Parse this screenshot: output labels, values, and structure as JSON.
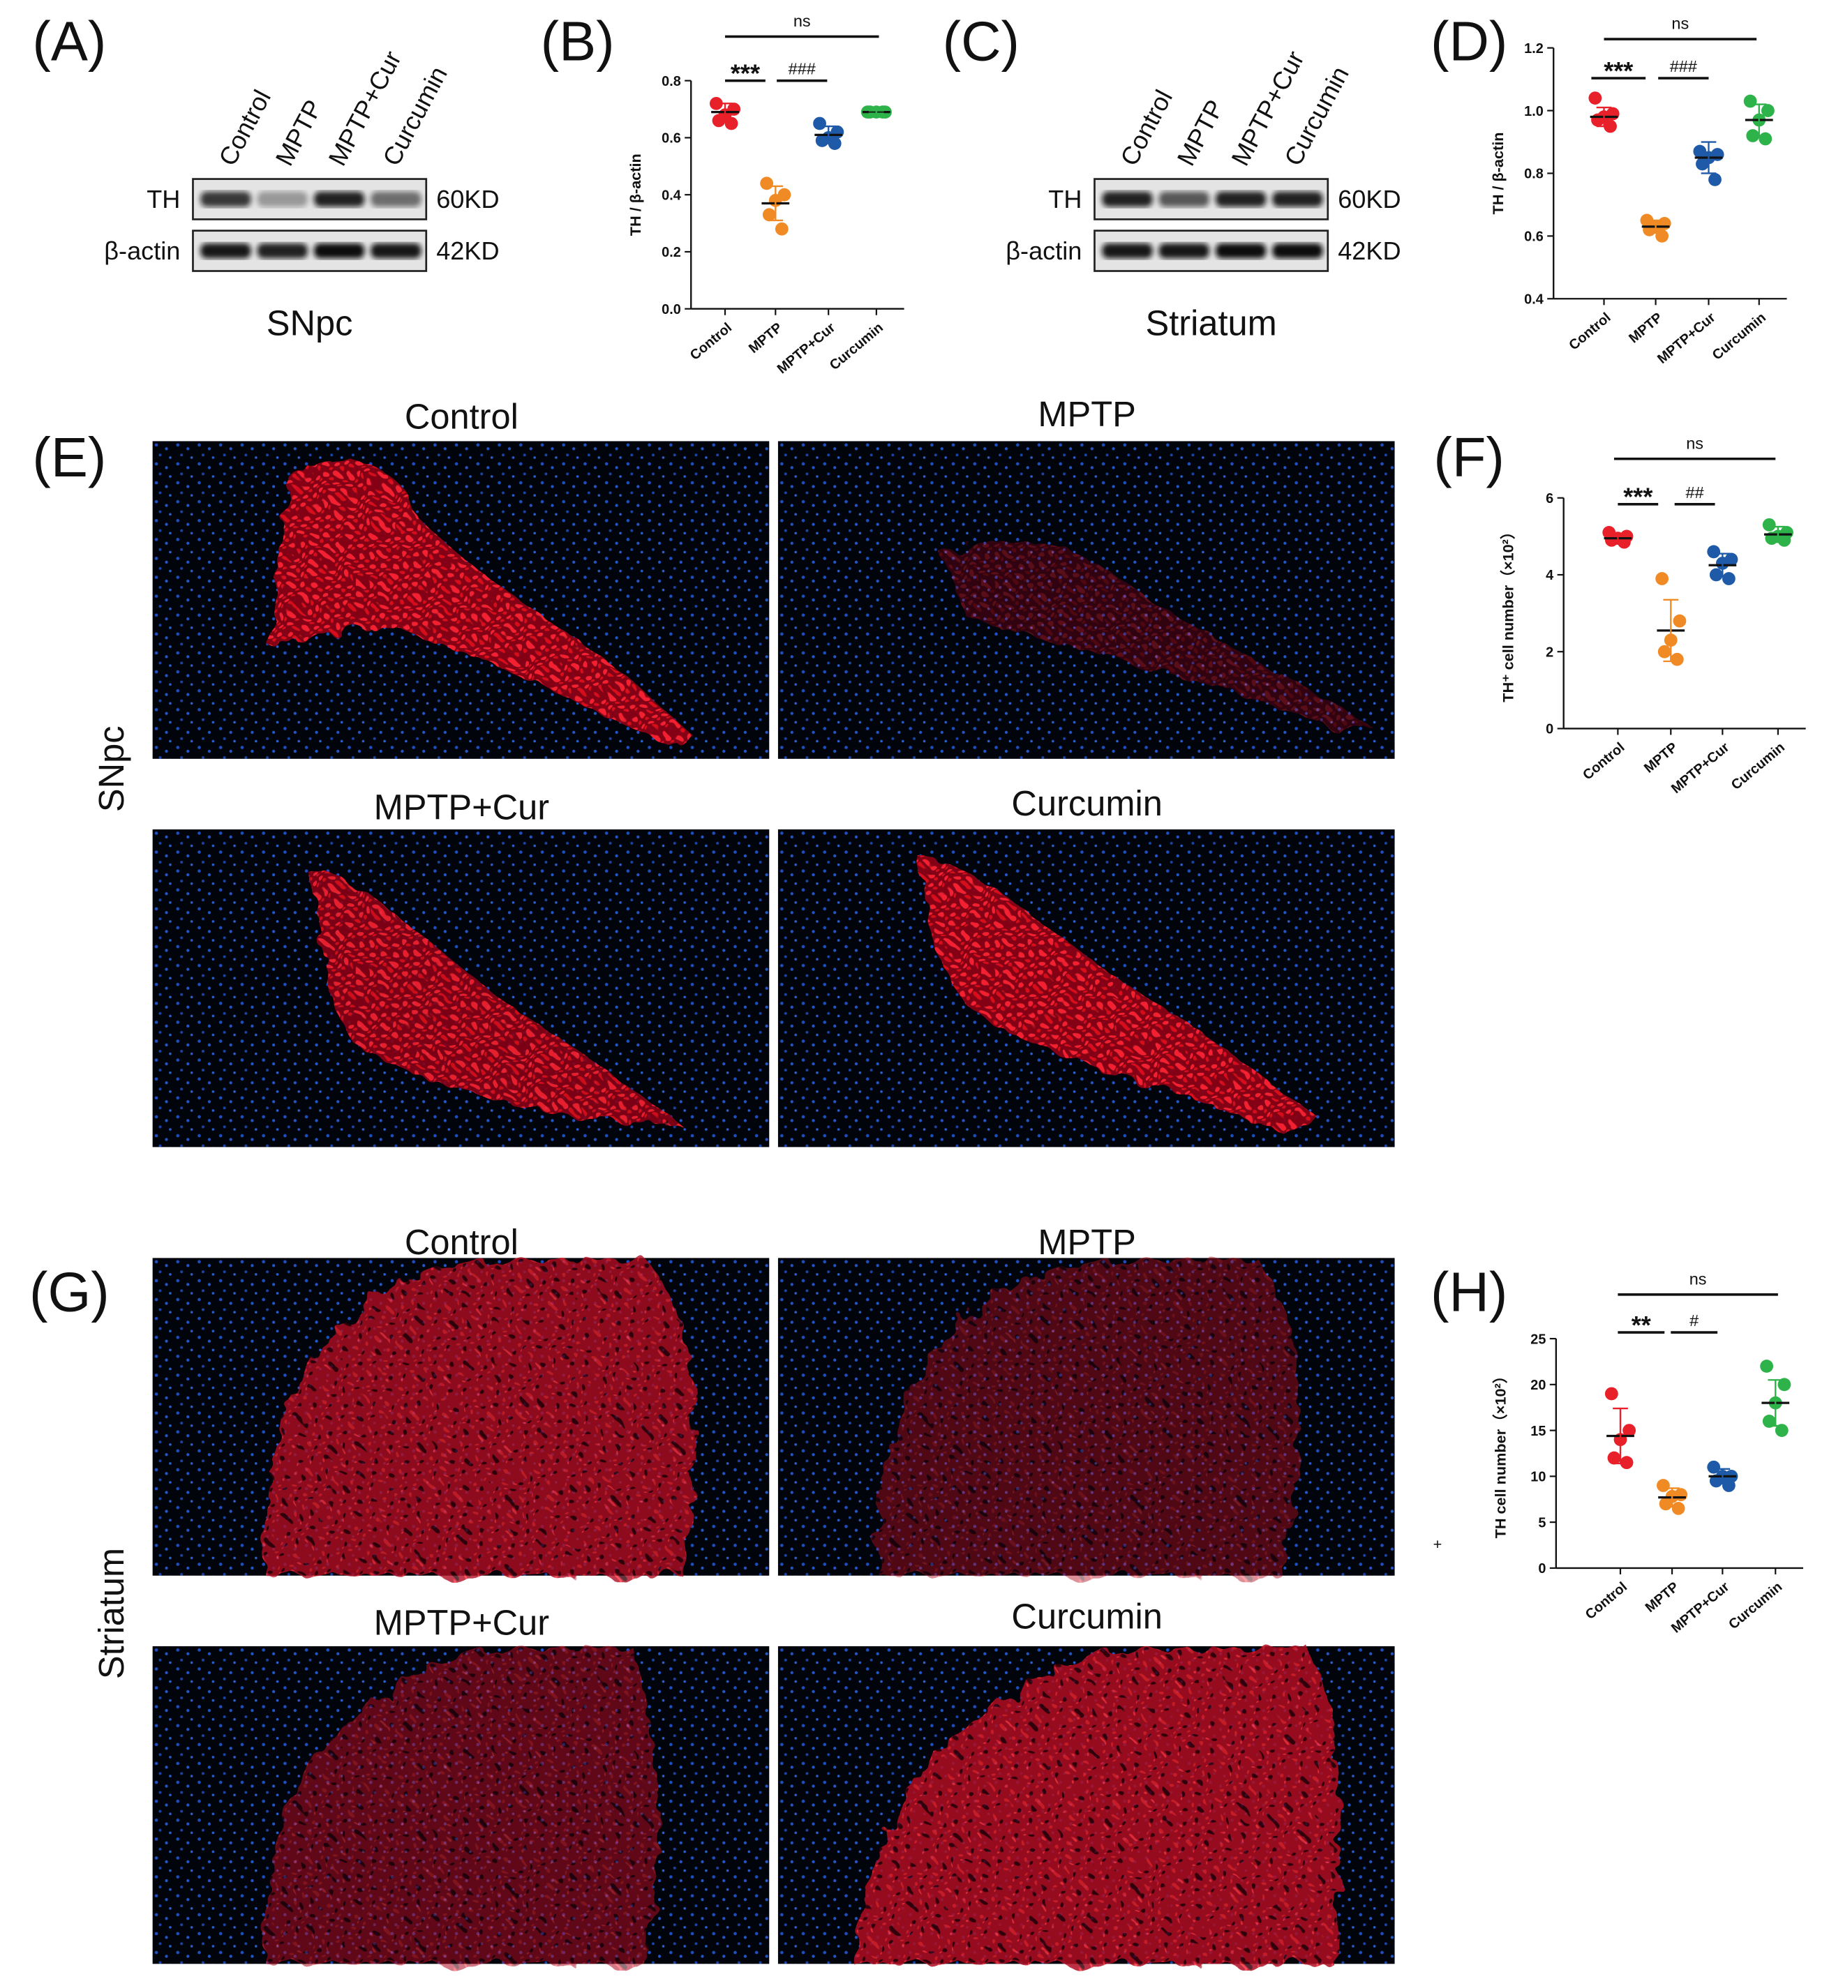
{
  "panel_labels": [
    "(A)",
    "(B)",
    "(C)",
    "(D)",
    "(E)",
    "(F)",
    "(G)",
    "(H)"
  ],
  "blots": [
    {
      "lanes": [
        "Control",
        "MPTP",
        "MPTP+Cur",
        "Curcumin"
      ],
      "rows": [
        {
          "name": "TH",
          "size": "60KD"
        },
        {
          "name": "β-actin",
          "size": "42KD"
        }
      ],
      "region": "SNpc"
    },
    {
      "lanes": [
        "Control",
        "MPTP",
        "MPTP+Cur",
        "Curcumin"
      ],
      "rows": [
        {
          "name": "TH",
          "size": "60KD"
        },
        {
          "name": "β-actin",
          "size": "42KD"
        }
      ],
      "region": "Striatum"
    }
  ],
  "images": [
    {
      "region": "SNpc",
      "titles": [
        "Control",
        "MPTP",
        "MPTP+Cur",
        "Curcumin"
      ]
    },
    {
      "region": "Striatum",
      "titles": [
        "Control",
        "MPTP",
        "MPTP+Cur",
        "Curcumin"
      ]
    }
  ],
  "stray_mark": "+",
  "chart_data": [
    {
      "type": "dot",
      "ylabel": "TH / β-actin",
      "categories": [
        "Control",
        "MPTP",
        "MPTP+Cur",
        "Curcumin"
      ],
      "colors": [
        "#e8202a",
        "#f08a24",
        "#1f5aa8",
        "#2eb34a"
      ],
      "points": [
        [
          0.72,
          0.7,
          0.68,
          0.66,
          0.65
        ],
        [
          0.44,
          0.4,
          0.38,
          0.33,
          0.28
        ],
        [
          0.65,
          0.62,
          0.6,
          0.59,
          0.58
        ],
        [
          0.69,
          0.69,
          0.69,
          0.69,
          0.69
        ]
      ],
      "means": [
        0.69,
        0.37,
        0.61,
        0.69
      ],
      "sds": [
        0.03,
        0.06,
        0.03,
        0.005
      ],
      "ylim": [
        0,
        0.8
      ],
      "yticks": [
        {
          "value": 0,
          "label": "0.0"
        },
        0.2,
        0.4,
        0.6,
        0.8
      ],
      "annotations": [
        "***",
        "###",
        "ns"
      ]
    },
    {
      "type": "dot",
      "ylabel": "TH / β-actin",
      "categories": [
        "Control",
        "MPTP",
        "MPTP+Cur",
        "Curcumin"
      ],
      "colors": [
        "#e8202a",
        "#f08a24",
        "#1f5aa8",
        "#2eb34a"
      ],
      "points": [
        [
          1.04,
          0.99,
          0.98,
          0.97,
          0.95
        ],
        [
          0.65,
          0.64,
          0.63,
          0.62,
          0.6
        ],
        [
          0.87,
          0.86,
          0.85,
          0.83,
          0.78
        ],
        [
          1.03,
          1.0,
          0.97,
          0.92,
          0.91
        ]
      ],
      "means": [
        0.98,
        0.63,
        0.85,
        0.97
      ],
      "sds": [
        0.03,
        0.02,
        0.05,
        0.05
      ],
      "ylim": [
        0.4,
        1.2
      ],
      "yticks": [
        0.4,
        0.6,
        0.8,
        {
          "value": 1,
          "label": "1.0"
        },
        1.2
      ],
      "annotations": [
        "***",
        "###",
        "ns"
      ]
    },
    {
      "type": "dot",
      "ylabel": "TH⁺ cell number（×10²）",
      "categories": [
        "Control",
        "MPTP",
        "MPTP+Cur",
        "Curcumin"
      ],
      "colors": [
        "#e8202a",
        "#f08a24",
        "#1f5aa8",
        "#2eb34a"
      ],
      "points": [
        [
          5.1,
          5.0,
          4.95,
          4.9,
          4.85
        ],
        [
          3.9,
          2.8,
          2.3,
          2.0,
          1.8
        ],
        [
          4.6,
          4.4,
          4.3,
          4.0,
          3.9
        ],
        [
          5.3,
          5.1,
          5.0,
          4.95,
          4.9
        ]
      ],
      "means": [
        4.95,
        2.55,
        4.25,
        5.05
      ],
      "sds": [
        0.1,
        0.8,
        0.3,
        0.2
      ],
      "ylim": [
        0,
        6
      ],
      "yticks": [
        0,
        2,
        4,
        6
      ],
      "annotations": [
        "***",
        "##",
        "ns"
      ]
    },
    {
      "type": "dot",
      "ylabel": "TH cell number（×10²）",
      "categories": [
        "Control",
        "MPTP",
        "MPTP+Cur",
        "Curcumin"
      ],
      "colors": [
        "#e8202a",
        "#f08a24",
        "#1f5aa8",
        "#2eb34a"
      ],
      "points": [
        [
          19,
          15,
          14,
          12,
          11.5
        ],
        [
          9,
          8,
          7.8,
          7,
          6.5
        ],
        [
          11,
          10,
          10,
          9.5,
          9
        ],
        [
          22,
          20,
          18,
          16,
          15
        ]
      ],
      "means": [
        14.4,
        7.7,
        10,
        18
      ],
      "sds": [
        3,
        1,
        0.8,
        2.5
      ],
      "ylim": [
        0,
        25
      ],
      "yticks": [
        0,
        5,
        10,
        15,
        20,
        25
      ],
      "annotations": [
        "**",
        "#",
        "ns"
      ]
    }
  ]
}
